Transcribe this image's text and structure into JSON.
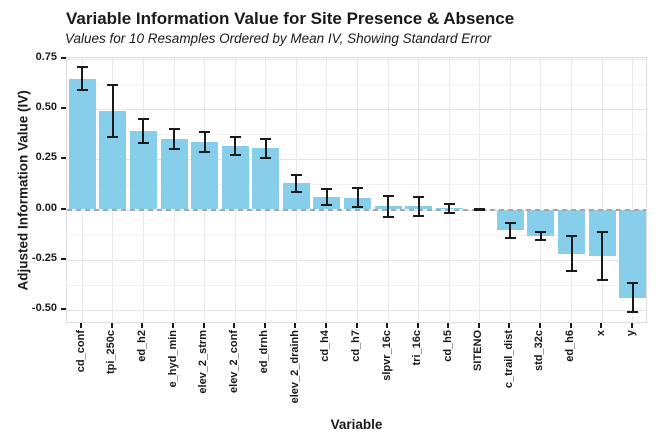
{
  "header": {
    "title": "Variable Information Value for Site Presence & Absence",
    "subtitle": "Values for 10 Resamples Ordered by Mean IV, Showing Standard Error"
  },
  "chart_data": {
    "type": "bar",
    "title": "Variable Information Value for Site Presence & Absence",
    "subtitle": "Values for 10 Resamples Ordered by Mean IV, Showing Standard Error",
    "xlabel": "Variable",
    "ylabel": "Adjusted Information Value (IV)",
    "categories": [
      "cd_conf",
      "tpi_250c",
      "ed_h2",
      "e_hyd_min",
      "elev_2_strm",
      "elev_2_conf",
      "ed_drnh",
      "elev_2_drainh",
      "cd_h4",
      "cd_h7",
      "slpvr_16c",
      "tri_16c",
      "cd_h5",
      "SITENO",
      "c_trail_dist",
      "std_32c",
      "ed_h6",
      "x",
      "y"
    ],
    "values": [
      0.65,
      0.49,
      0.39,
      0.35,
      0.335,
      0.315,
      0.305,
      0.13,
      0.062,
      0.058,
      0.015,
      0.015,
      0.006,
      0.0,
      -0.103,
      -0.133,
      -0.22,
      -0.232,
      -0.44
    ],
    "std_error": [
      0.057,
      0.13,
      0.058,
      0.05,
      0.05,
      0.046,
      0.048,
      0.042,
      0.038,
      0.048,
      0.05,
      0.045,
      0.022,
      0.004,
      0.038,
      0.021,
      0.086,
      0.12,
      0.072
    ],
    "ylim": [
      -0.57,
      0.755
    ],
    "yticks": [
      0.75,
      0.5,
      0.25,
      0,
      -0.25,
      -0.5
    ],
    "ytick_labels": [
      "0.75",
      "0.50",
      "0.25",
      "0.00",
      "-0.25",
      "-0.50"
    ],
    "grid": true,
    "legend_position": "none",
    "error_bars": true,
    "zero_line_style": "dashed",
    "colors": {
      "bar_fill": "#87CEEB",
      "error_bar": "#1a1a1a",
      "grid_major": "#e4e4e4",
      "grid_minor": "#f1f1f1",
      "panel_border": "#dedede",
      "zero_line": "#a6a6a6",
      "text": "#1a1a1a"
    }
  }
}
